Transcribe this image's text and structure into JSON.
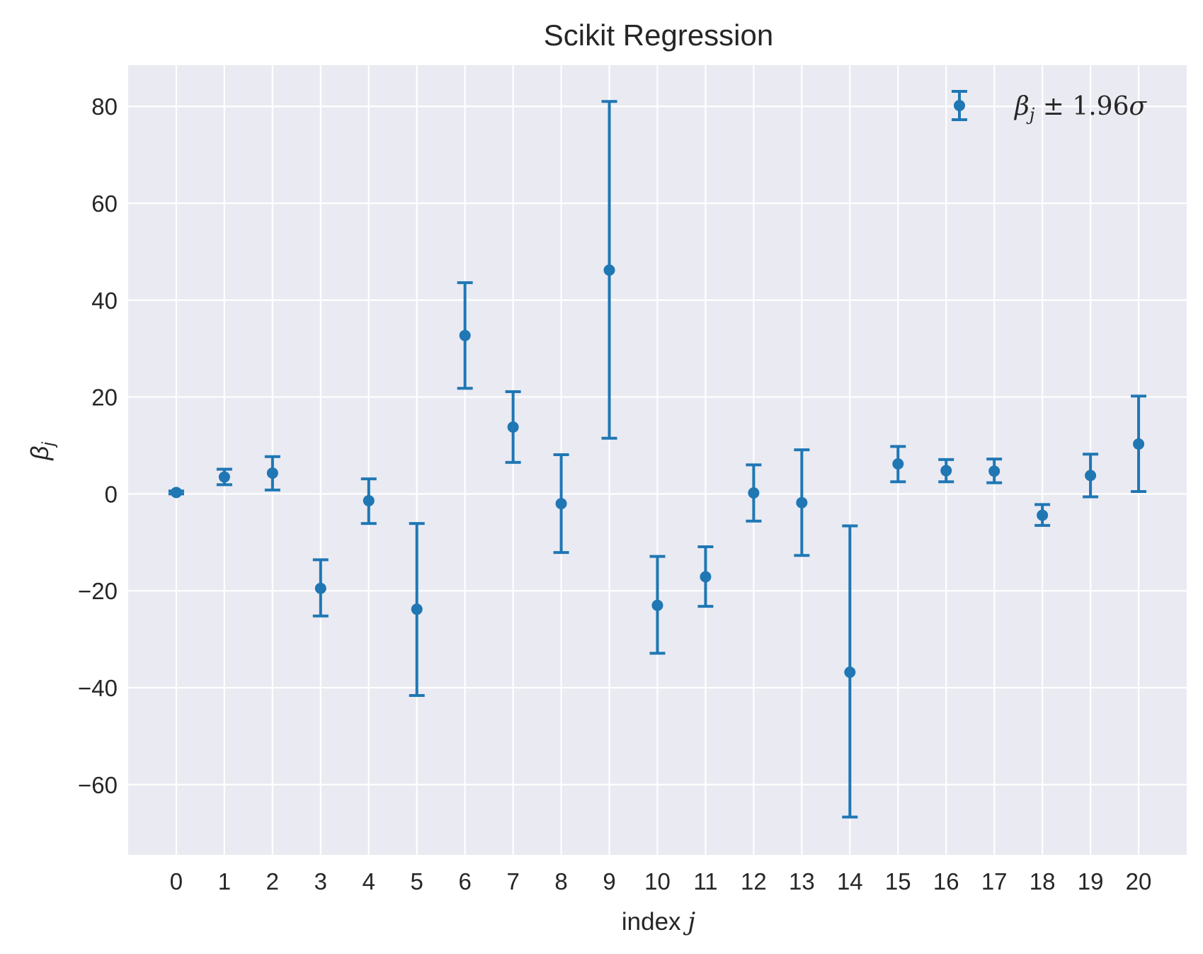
{
  "chart_data": {
    "type": "scatter",
    "title": "Scikit Regression",
    "xlabel": "index j",
    "ylabel": "β_j",
    "x_ticks": [
      0,
      1,
      2,
      3,
      4,
      5,
      6,
      7,
      8,
      9,
      10,
      11,
      12,
      13,
      14,
      15,
      16,
      17,
      18,
      19,
      20
    ],
    "y_ticks": [
      -60,
      -40,
      -20,
      0,
      20,
      40,
      60,
      80
    ],
    "y_tick_labels": [
      "−60",
      "−40",
      "−20",
      "0",
      "20",
      "40",
      "60",
      "80"
    ],
    "xlim": [
      -1.0,
      21.0
    ],
    "ylim": [
      -74.5,
      88.5
    ],
    "grid": true,
    "legend_position": "top-right",
    "legend_label": "β_j ± 1.96σ",
    "series": [
      {
        "name": "β_j ± 1.96σ",
        "color": "#1f77b4",
        "x": [
          0,
          1,
          2,
          3,
          4,
          5,
          6,
          7,
          8,
          9,
          10,
          11,
          12,
          13,
          14,
          15,
          16,
          17,
          18,
          19,
          20
        ],
        "y": [
          0.3,
          3.5,
          4.3,
          -19.5,
          -1.4,
          -23.8,
          32.7,
          13.8,
          -2.0,
          46.2,
          -23.0,
          -17.1,
          0.2,
          -1.8,
          -36.8,
          6.2,
          4.8,
          4.7,
          -4.4,
          3.8,
          10.3
        ],
        "lower": [
          0.0,
          1.9,
          0.8,
          -25.2,
          -6.1,
          -41.6,
          21.8,
          6.5,
          -12.1,
          11.5,
          -32.9,
          -23.2,
          -5.6,
          -12.7,
          -66.7,
          2.5,
          2.5,
          2.3,
          -6.5,
          -0.6,
          0.5
        ],
        "upper": [
          0.6,
          5.1,
          7.7,
          -13.6,
          3.1,
          -6.1,
          43.6,
          21.1,
          8.1,
          81.0,
          -12.9,
          -10.9,
          6.0,
          9.1,
          -6.6,
          9.8,
          7.1,
          7.2,
          -2.2,
          8.2,
          20.2
        ]
      }
    ]
  }
}
